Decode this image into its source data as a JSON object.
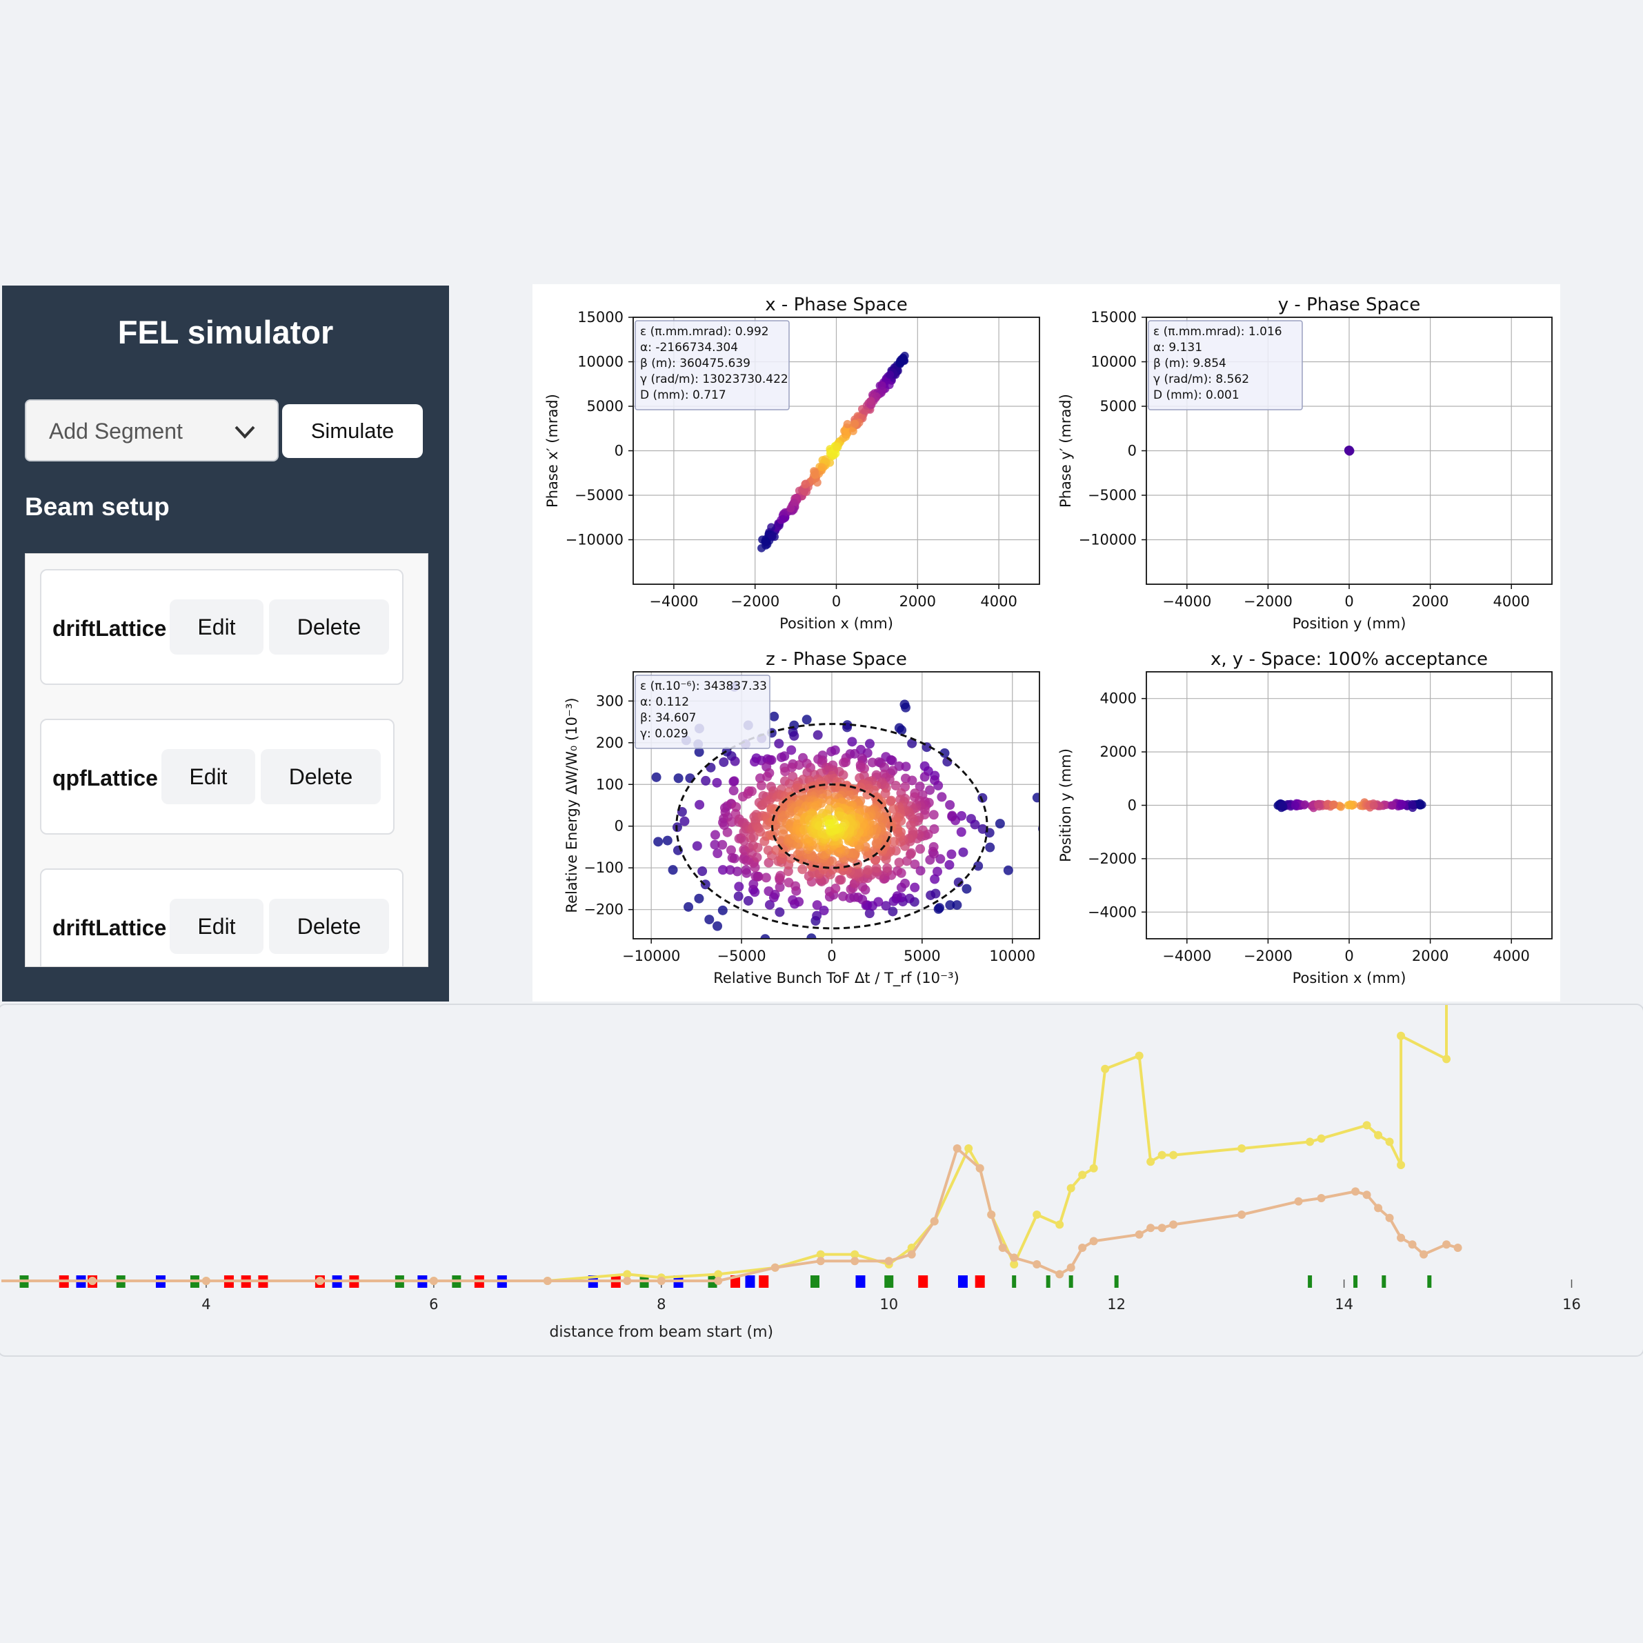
{
  "app": {
    "title": "FEL simulator",
    "add_segment_placeholder": "Add Segment",
    "simulate_label": "Simulate",
    "beam_setup_label": "Beam setup"
  },
  "segments": [
    {
      "name": "driftLattice",
      "edit_label": "Edit",
      "delete_label": "Delete"
    },
    {
      "name": "qpfLattice",
      "edit_label": "Edit",
      "delete_label": "Delete"
    },
    {
      "name": "driftLattice",
      "edit_label": "Edit",
      "delete_label": "Delete"
    }
  ],
  "colors": {
    "sidebar_bg": "#2c3a4b",
    "yellow_line": "#f0e060",
    "orange_line": "#e8b890",
    "magnet_green": "#1a8a1a",
    "magnet_red": "#ff0000",
    "magnet_blue": "#0000ff"
  },
  "chart_data": [
    {
      "type": "scatter",
      "title": "x - Phase Space",
      "xlabel": "Position x (mm)",
      "ylabel": "Phase x′ (mrad)",
      "xlim": [
        -5000,
        5000
      ],
      "ylim": [
        -15000,
        15000
      ],
      "xticks": [
        -4000,
        -2000,
        0,
        2000,
        4000
      ],
      "yticks": [
        -10000,
        -5000,
        0,
        5000,
        10000,
        15000
      ],
      "grid": true,
      "legend_placement": "top-left",
      "info": [
        "ε (π.mm.mrad): 0.992",
        "α: -2166734.304",
        "β (m): 360475.639",
        "γ (rad/m): 13023730.422",
        "D (mm): 0.717"
      ],
      "points": {
        "shape": "line-band",
        "from": [
          -1800,
          -10500
        ],
        "to": [
          1700,
          10500
        ]
      }
    },
    {
      "type": "scatter",
      "title": "y - Phase Space",
      "xlabel": "Position y (mm)",
      "ylabel": "Phase y′ (mrad)",
      "xlim": [
        -5000,
        5000
      ],
      "ylim": [
        -15000,
        15000
      ],
      "xticks": [
        -4000,
        -2000,
        0,
        2000,
        4000
      ],
      "yticks": [
        -10000,
        -5000,
        0,
        5000,
        10000,
        15000
      ],
      "grid": true,
      "legend_placement": "top-left",
      "info": [
        "ε (π.mm.mrad): 1.016",
        "α: 9.131",
        "β (m): 9.854",
        "γ (rad/m): 8.562",
        "D (mm): 0.001"
      ],
      "points": {
        "shape": "point",
        "at": [
          0,
          0
        ]
      }
    },
    {
      "type": "scatter",
      "title": "z - Phase Space",
      "xlabel": "Relative Bunch ToF Δt / T_rf (10⁻³)",
      "ylabel": "Relative Energy ΔW/W₀ (10⁻³)",
      "xlim": [
        -11000,
        11500
      ],
      "ylim": [
        -270,
        370
      ],
      "xticks": [
        -10000,
        -5000,
        0,
        5000,
        10000
      ],
      "yticks": [
        -200,
        -100,
        0,
        100,
        200,
        300
      ],
      "grid": true,
      "legend_placement": "top-left",
      "info": [
        "ε (π.10⁻⁶): 343837.33",
        "α: 0.112",
        "β: 34.607",
        "γ: 0.029"
      ],
      "ellipses": [
        {
          "rx": 8600,
          "ry": 245
        },
        {
          "rx": 3300,
          "ry": 100
        }
      ],
      "points": {
        "shape": "gaussian-cloud",
        "center": [
          0,
          0
        ],
        "sx": 3500,
        "sy": 95
      }
    },
    {
      "type": "scatter",
      "title": "x, y - Space: 100% acceptance",
      "xlabel": "Position x (mm)",
      "ylabel": "Position y (mm)",
      "xlim": [
        -5000,
        5000
      ],
      "ylim": [
        -5000,
        5000
      ],
      "xticks": [
        -4000,
        -2000,
        0,
        2000,
        4000
      ],
      "yticks": [
        -4000,
        -2000,
        0,
        2000,
        4000
      ],
      "grid": true,
      "points": {
        "shape": "horizontal-band",
        "from": [
          -1800,
          0
        ],
        "to": [
          1800,
          0
        ]
      }
    },
    {
      "type": "line",
      "xlabel": "distance from beam start (m)",
      "xlim": [
        2.2,
        16.3
      ],
      "xticks": [
        4,
        6,
        8,
        10,
        12,
        14,
        16
      ],
      "grid": false,
      "series": [
        {
          "color": "#f0e060",
          "x": [
            2.2,
            3,
            4,
            5,
            6,
            7,
            7.7,
            8,
            8.5,
            9,
            9.4,
            9.7,
            10,
            10.2,
            10.4,
            10.7,
            10.8,
            10.9,
            11.1,
            11.3,
            11.5,
            11.6,
            11.7,
            11.8,
            11.9,
            12.2,
            12.3,
            12.4,
            12.5,
            13.1,
            13.7,
            13.8,
            14.2,
            14.3,
            14.4,
            14.5,
            14.5,
            14.9,
            14.9,
            15.0
          ],
          "y": [
            0,
            0,
            0,
            0,
            0,
            0,
            0.02,
            0.01,
            0.02,
            0.04,
            0.08,
            0.08,
            0.05,
            0.1,
            0.18,
            0.4,
            0.34,
            0.2,
            0.05,
            0.2,
            0.17,
            0.28,
            0.32,
            0.34,
            0.64,
            0.68,
            0.36,
            0.38,
            0.38,
            0.4,
            0.42,
            0.43,
            0.47,
            0.44,
            0.42,
            0.35,
            0.74,
            0.67,
            0.89,
            0.89
          ]
        },
        {
          "color": "#e8b890",
          "x": [
            2.2,
            3,
            4,
            5,
            6,
            7,
            7.7,
            8,
            8.5,
            9,
            9.4,
            9.7,
            10,
            10.2,
            10.4,
            10.6,
            10.8,
            10.9,
            11.0,
            11.1,
            11.3,
            11.5,
            11.6,
            11.7,
            11.8,
            12.2,
            12.3,
            12.4,
            12.5,
            13.1,
            13.6,
            13.8,
            14.1,
            14.2,
            14.3,
            14.4,
            14.5,
            14.6,
            14.7,
            14.9,
            15.0
          ],
          "y": [
            0,
            0,
            0,
            0,
            0,
            0,
            0,
            0,
            0,
            0.04,
            0.06,
            0.06,
            0.06,
            0.08,
            0.18,
            0.4,
            0.34,
            0.2,
            0.1,
            0.07,
            0.05,
            0.02,
            0.04,
            0.1,
            0.12,
            0.14,
            0.16,
            0.16,
            0.17,
            0.2,
            0.24,
            0.25,
            0.27,
            0.26,
            0.22,
            0.19,
            0.13,
            0.11,
            0.08,
            0.11,
            0.1
          ]
        }
      ],
      "magnets": [
        {
          "x": 2.4,
          "c": "g"
        },
        {
          "x": 2.75,
          "c": "r"
        },
        {
          "x": 2.9,
          "c": "b"
        },
        {
          "x": 3.0,
          "c": "r"
        },
        {
          "x": 3.25,
          "c": "g"
        },
        {
          "x": 3.6,
          "c": "b"
        },
        {
          "x": 3.9,
          "c": "g"
        },
        {
          "x": 4.2,
          "c": "r"
        },
        {
          "x": 4.35,
          "c": "r"
        },
        {
          "x": 4.5,
          "c": "r"
        },
        {
          "x": 5.0,
          "c": "r"
        },
        {
          "x": 5.15,
          "c": "b"
        },
        {
          "x": 5.3,
          "c": "r"
        },
        {
          "x": 5.7,
          "c": "g"
        },
        {
          "x": 5.9,
          "c": "b"
        },
        {
          "x": 6.2,
          "c": "g"
        },
        {
          "x": 6.4,
          "c": "r"
        },
        {
          "x": 6.6,
          "c": "b"
        },
        {
          "x": 7.4,
          "c": "b"
        },
        {
          "x": 7.6,
          "c": "r"
        },
        {
          "x": 7.85,
          "c": "g"
        },
        {
          "x": 8.15,
          "c": "b"
        },
        {
          "x": 8.45,
          "c": "g"
        },
        {
          "x": 8.65,
          "c": "r"
        },
        {
          "x": 8.78,
          "c": "b"
        },
        {
          "x": 8.9,
          "c": "r"
        },
        {
          "x": 9.35,
          "c": "g"
        },
        {
          "x": 9.75,
          "c": "b"
        },
        {
          "x": 10.0,
          "c": "g"
        },
        {
          "x": 10.3,
          "c": "r"
        },
        {
          "x": 10.65,
          "c": "b"
        },
        {
          "x": 10.8,
          "c": "r"
        },
        {
          "x": 11.1,
          "c": "g"
        },
        {
          "x": 11.4,
          "c": "g"
        },
        {
          "x": 11.6,
          "c": "g"
        },
        {
          "x": 12.0,
          "c": "g"
        },
        {
          "x": 13.7,
          "c": "g"
        },
        {
          "x": 14.1,
          "c": "g"
        },
        {
          "x": 14.35,
          "c": "g"
        },
        {
          "x": 14.75,
          "c": "g"
        }
      ]
    }
  ]
}
